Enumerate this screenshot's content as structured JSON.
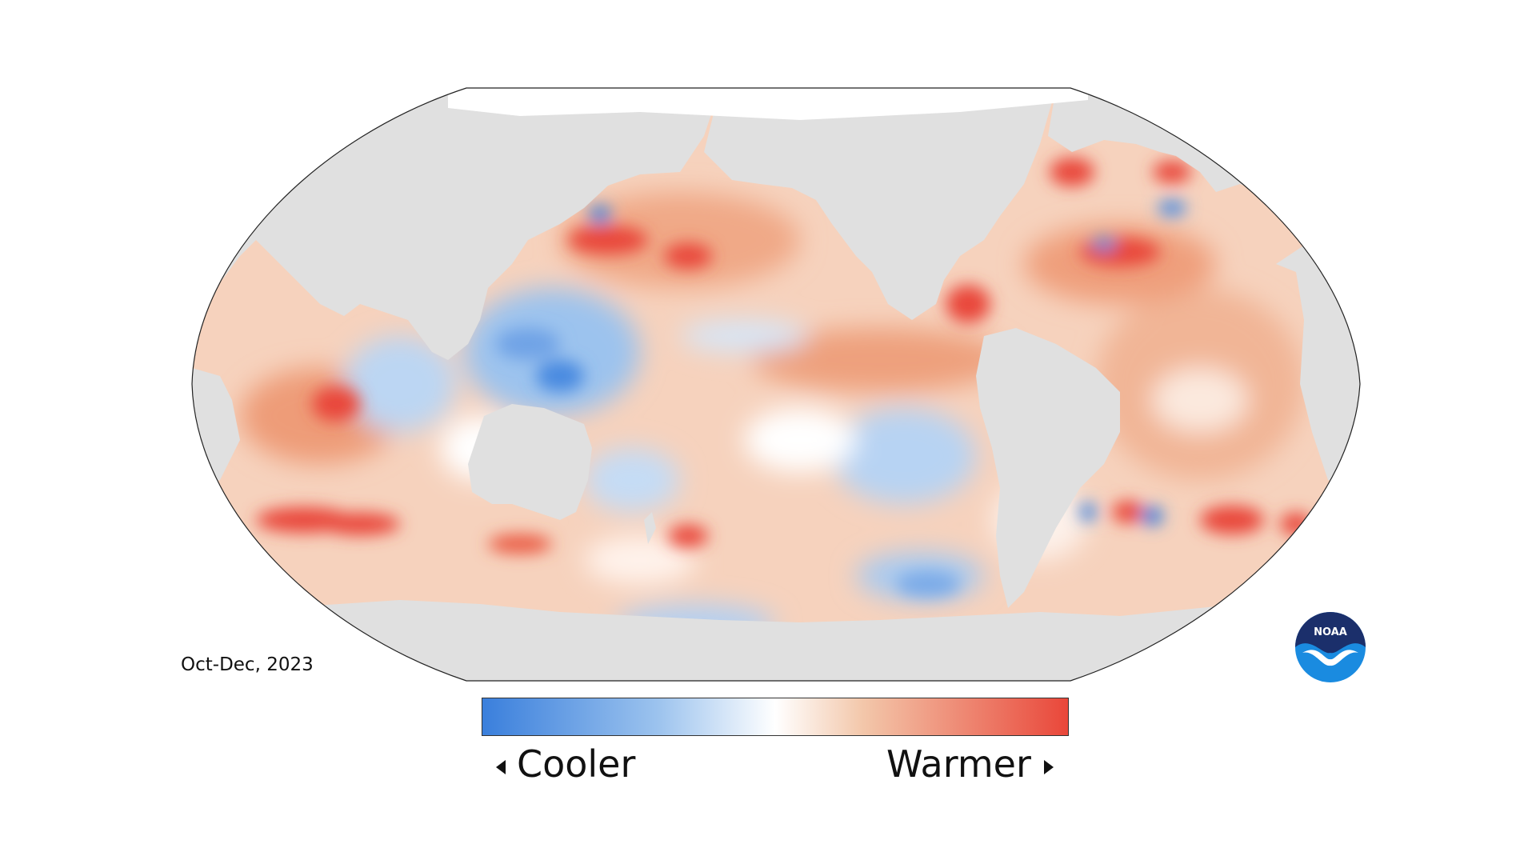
{
  "map": {
    "projection": "Robinson (Pacific-centered)",
    "land_color": "#e0e0e0",
    "ice_color": "#ffffff",
    "ocean_neutral_color": "#ffffff",
    "outline_color": "#222222"
  },
  "period_label": "Oct-Dec, 2023",
  "legend": {
    "low_label": "Cooler",
    "high_label": "Warmer",
    "low_color": "#3a7fdc",
    "mid_color": "#ffffff",
    "high_color": "#e9473a"
  },
  "logo": {
    "icon": "noaa-logo-icon",
    "text": "NOAA",
    "navy": "#1b2f6b",
    "blue": "#1a8be0"
  }
}
